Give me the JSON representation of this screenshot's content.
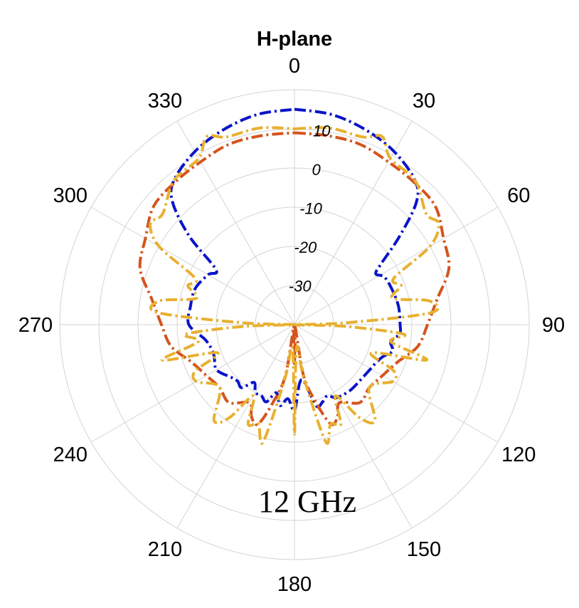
{
  "chart_data": {
    "type": "polar-line",
    "title": "H-plane",
    "annotation": "12 GHz",
    "angle_ticks": [
      "0",
      "30",
      "60",
      "90",
      "120",
      "150",
      "180",
      "210",
      "240",
      "270",
      "300",
      "330"
    ],
    "radial_ticks": [
      "-30",
      "-20",
      "-10",
      "0",
      "10"
    ],
    "r_range": [
      -40,
      20
    ],
    "angle_zero": "top",
    "angle_direction": "clockwise",
    "grid": true,
    "series": [
      {
        "color": "#0a14c8",
        "dash": "dash-dot",
        "points": [
          [
            0,
            15
          ],
          [
            10,
            14.5
          ],
          [
            20,
            13
          ],
          [
            30,
            11
          ],
          [
            40,
            8
          ],
          [
            45,
            4
          ],
          [
            50,
            -5
          ],
          [
            55,
            -13
          ],
          [
            58,
            -15.5
          ],
          [
            62,
            -14
          ],
          [
            70,
            -13.5
          ],
          [
            80,
            -13
          ],
          [
            90,
            -13
          ],
          [
            95,
            -13
          ],
          [
            100,
            -15
          ],
          [
            105,
            -14
          ],
          [
            110,
            -16
          ],
          [
            115,
            -17
          ],
          [
            120,
            -17.5
          ],
          [
            130,
            -18
          ],
          [
            140,
            -18
          ],
          [
            150,
            -18.5
          ],
          [
            155,
            -20
          ],
          [
            160,
            -19
          ],
          [
            165,
            -18.5
          ],
          [
            170,
            -25
          ],
          [
            175,
            -25
          ],
          [
            180,
            -18
          ],
          [
            185,
            -21
          ],
          [
            190,
            -19
          ],
          [
            195,
            -22
          ],
          [
            200,
            -19
          ],
          [
            205,
            -20
          ],
          [
            210,
            -20
          ],
          [
            215,
            -22
          ],
          [
            220,
            -19
          ],
          [
            225,
            -19.5
          ],
          [
            230,
            -19
          ],
          [
            240,
            -17
          ],
          [
            250,
            -18
          ],
          [
            260,
            -17
          ],
          [
            270,
            -13
          ],
          [
            280,
            -13
          ],
          [
            290,
            -13
          ],
          [
            300,
            -14.5
          ],
          [
            305,
            -15.5
          ],
          [
            310,
            -5
          ],
          [
            315,
            4
          ],
          [
            320,
            8
          ],
          [
            330,
            11
          ],
          [
            340,
            13
          ],
          [
            350,
            14.5
          ],
          [
            360,
            15
          ]
        ]
      },
      {
        "color": "#d4541e",
        "dash": "dash-dot",
        "points": [
          [
            0,
            9
          ],
          [
            10,
            9
          ],
          [
            20,
            9
          ],
          [
            30,
            8
          ],
          [
            40,
            7.5
          ],
          [
            50,
            7
          ],
          [
            60,
            4
          ],
          [
            70,
            2
          ],
          [
            80,
            -3
          ],
          [
            90,
            -6
          ],
          [
            100,
            -8
          ],
          [
            110,
            -12
          ],
          [
            120,
            -14
          ],
          [
            130,
            -15
          ],
          [
            140,
            -14
          ],
          [
            150,
            -17
          ],
          [
            155,
            -14
          ],
          [
            160,
            -13
          ],
          [
            165,
            -20
          ],
          [
            170,
            -27
          ],
          [
            175,
            -40
          ],
          [
            180,
            -30
          ],
          [
            185,
            -40
          ],
          [
            190,
            -27
          ],
          [
            195,
            -20
          ],
          [
            200,
            -13
          ],
          [
            205,
            -14
          ],
          [
            210,
            -17
          ],
          [
            220,
            -14
          ],
          [
            230,
            -15
          ],
          [
            240,
            -14
          ],
          [
            250,
            -12
          ],
          [
            260,
            -8
          ],
          [
            270,
            -6
          ],
          [
            280,
            -3
          ],
          [
            290,
            2
          ],
          [
            300,
            4
          ],
          [
            310,
            7
          ],
          [
            320,
            7.5
          ],
          [
            330,
            8
          ],
          [
            340,
            9
          ],
          [
            350,
            9
          ],
          [
            360,
            9
          ]
        ]
      },
      {
        "color": "#e8b030",
        "dash": "dash-dot",
        "points": [
          [
            0,
            10
          ],
          [
            10,
            11
          ],
          [
            20,
            11
          ],
          [
            25,
            13
          ],
          [
            30,
            9
          ],
          [
            40,
            8
          ],
          [
            50,
            4
          ],
          [
            55,
            5
          ],
          [
            60,
            0
          ],
          [
            65,
            -12
          ],
          [
            70,
            -11
          ],
          [
            75,
            -14
          ],
          [
            80,
            -5
          ],
          [
            85,
            -5
          ],
          [
            88,
            -27
          ],
          [
            90,
            -40
          ],
          [
            92,
            -27
          ],
          [
            95,
            -12
          ],
          [
            100,
            -15
          ],
          [
            105,
            -5
          ],
          [
            110,
            -19
          ],
          [
            115,
            -12
          ],
          [
            120,
            -11
          ],
          [
            130,
            -15
          ],
          [
            140,
            -8
          ],
          [
            145,
            -11
          ],
          [
            150,
            -19
          ],
          [
            155,
            -12
          ],
          [
            160,
            -13
          ],
          [
            165,
            -9
          ],
          [
            170,
            -26
          ],
          [
            175,
            -34
          ],
          [
            180,
            -12
          ],
          [
            185,
            -34
          ],
          [
            190,
            -26
          ],
          [
            195,
            -9
          ],
          [
            200,
            -13
          ],
          [
            205,
            -12
          ],
          [
            210,
            -19
          ],
          [
            215,
            -11
          ],
          [
            220,
            -8
          ],
          [
            230,
            -15
          ],
          [
            240,
            -11
          ],
          [
            245,
            -12
          ],
          [
            250,
            -19
          ],
          [
            255,
            -5
          ],
          [
            260,
            -15
          ],
          [
            265,
            -12
          ],
          [
            268,
            -27
          ],
          [
            270,
            -40
          ],
          [
            272,
            -27
          ],
          [
            275,
            -5
          ],
          [
            280,
            -5
          ],
          [
            285,
            -14
          ],
          [
            290,
            -11
          ],
          [
            295,
            -12
          ],
          [
            300,
            0
          ],
          [
            305,
            5
          ],
          [
            310,
            4
          ],
          [
            320,
            8
          ],
          [
            330,
            9
          ],
          [
            335,
            13
          ],
          [
            340,
            11
          ],
          [
            350,
            11
          ],
          [
            360,
            10
          ]
        ]
      }
    ]
  }
}
